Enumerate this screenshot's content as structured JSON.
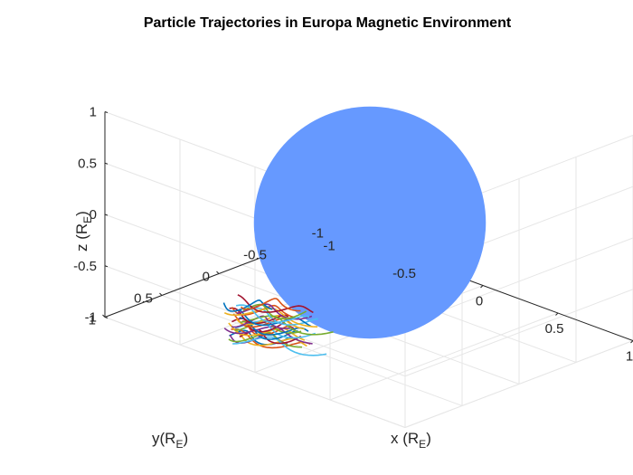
{
  "chart_data": {
    "type": "3d-line",
    "title": "Particle Trajectories in Europa Magnetic Environment",
    "xlabel": {
      "main": "x (R",
      "sub": "E",
      "end": ")"
    },
    "ylabel": {
      "main": "y(R",
      "sub": "E",
      "end": ")"
    },
    "zlabel": {
      "main": "z (R",
      "sub": "E",
      "end": ")"
    },
    "xlim": [
      -1,
      1
    ],
    "ylim": [
      -1,
      1
    ],
    "zlim": [
      -1,
      1
    ],
    "x_ticks": [
      "-1",
      "-0.5",
      "0",
      "0.5",
      "1"
    ],
    "y_ticks": [
      "-1",
      "-0.5",
      "0",
      "0.5",
      "1"
    ],
    "z_ticks": [
      "-1",
      "-0.5",
      "0",
      "0.5",
      "1"
    ],
    "x_tick_values": [
      -1,
      -0.5,
      0,
      0.5,
      1
    ],
    "y_tick_values": [
      -1,
      -0.5,
      0,
      0.5,
      1
    ],
    "z_tick_values": [
      -1,
      -0.5,
      0,
      0.5,
      1
    ],
    "grid": true,
    "sphere": {
      "name": "Europa",
      "center": [
        0,
        0,
        0
      ],
      "radius": 1,
      "color": "#6699ff"
    },
    "trajectory_region": {
      "x": [
        -0.15,
        0.25
      ],
      "y": [
        0.8,
        1.1
      ],
      "z": [
        -0.7,
        -0.35
      ]
    },
    "trajectory_count": 30,
    "trajectory_colors": [
      "#0072bd",
      "#d95319",
      "#edb120",
      "#7e2f8e",
      "#77ac30",
      "#4dbeee",
      "#a2142f"
    ]
  }
}
